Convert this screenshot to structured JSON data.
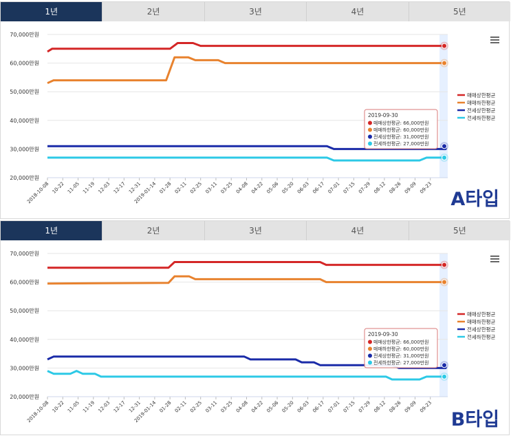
{
  "tabs": [
    "1년",
    "2년",
    "3년",
    "4년",
    "5년"
  ],
  "active_tab_index": 0,
  "series_colors": [
    "#d42626",
    "#e8822e",
    "#1a2ba8",
    "#2cc9e6"
  ],
  "chart_data": [
    {
      "type": "line",
      "label": "A타입",
      "y_ticks": [
        "70,000만원",
        "60,000만원",
        "50,000만원",
        "40,000만원",
        "30,000만원",
        "20,000만원"
      ],
      "ylim": [
        20000,
        70000
      ],
      "x_ticks": [
        "2018-10-08",
        "10-22",
        "11-05",
        "11-19",
        "12-03",
        "12-17",
        "12-31",
        "2019-01-14",
        "01-28",
        "02-11",
        "02-25",
        "03-11",
        "03-25",
        "04-08",
        "04-22",
        "05-06",
        "05-20",
        "06-03",
        "06-17",
        "07-01",
        "07-15",
        "07-29",
        "08-12",
        "08-26",
        "09-09",
        "09-23"
      ],
      "legend_position": "right",
      "series": [
        {
          "name": "매매상한평균",
          "points": [
            [
              0,
              64000
            ],
            [
              0.6,
              65000
            ],
            [
              16,
              65000
            ],
            [
              17,
              67000
            ],
            [
              19,
              67000
            ],
            [
              20,
              66000
            ],
            [
              52,
              66000
            ]
          ]
        },
        {
          "name": "매매하한평균",
          "points": [
            [
              0,
              53000
            ],
            [
              0.8,
              54000
            ],
            [
              15.5,
              54000
            ],
            [
              16.6,
              62000
            ],
            [
              18.4,
              62000
            ],
            [
              19.3,
              61000
            ],
            [
              22.3,
              61000
            ],
            [
              23.2,
              60000
            ],
            [
              52,
              60000
            ]
          ]
        },
        {
          "name": "전세상한평균",
          "points": [
            [
              0,
              31000
            ],
            [
              36.5,
              31000
            ],
            [
              37.4,
              30000
            ],
            [
              52,
              30000
            ],
            [
              52,
              31000
            ]
          ]
        },
        {
          "name": "전세하한평균",
          "points": [
            [
              0,
              27000
            ],
            [
              36.5,
              27000
            ],
            [
              37.4,
              26000
            ],
            [
              48.6,
              26000
            ],
            [
              49.5,
              27000
            ],
            [
              52,
              27000
            ]
          ]
        }
      ],
      "tooltip": {
        "date": "2019-09-30",
        "lines": [
          "매매상한평균: 66,000만원",
          "매매하한평균: 60,000만원",
          "전세상한평균: 31,000만원",
          "전세하한평균: 27,000만원"
        ]
      }
    },
    {
      "type": "line",
      "label": "B타입",
      "y_ticks": [
        "70,000만원",
        "60,000만원",
        "50,000만원",
        "40,000만원",
        "30,000만원",
        "20,000만원"
      ],
      "ylim": [
        20000,
        70000
      ],
      "x_ticks": [
        "2018-10-08",
        "10-22",
        "11-05",
        "11-19",
        "12-03",
        "12-17",
        "12-31",
        "2019-01-14",
        "01-28",
        "02-11",
        "02-25",
        "03-11",
        "03-25",
        "04-08",
        "04-22",
        "05-06",
        "05-20",
        "06-03",
        "06-17",
        "07-01",
        "07-15",
        "07-29",
        "08-12",
        "08-26",
        "09-09",
        "09-23"
      ],
      "legend_position": "right",
      "series": [
        {
          "name": "매매상한평균",
          "points": [
            [
              0,
              65000
            ],
            [
              15.8,
              65000
            ],
            [
              16.6,
              67000
            ],
            [
              35.6,
              67000
            ],
            [
              36.4,
              66000
            ],
            [
              52,
              66000
            ]
          ]
        },
        {
          "name": "매매하한평균",
          "points": [
            [
              0,
              59500
            ],
            [
              15.8,
              59700
            ],
            [
              16.6,
              62000
            ],
            [
              18.5,
              62000
            ],
            [
              19.3,
              61000
            ],
            [
              35.6,
              61000
            ],
            [
              36.4,
              60000
            ],
            [
              52,
              60000
            ]
          ]
        },
        {
          "name": "전세상한평균",
          "points": [
            [
              0,
              33000
            ],
            [
              0.8,
              34000
            ],
            [
              25.7,
              34000
            ],
            [
              26.5,
              33000
            ],
            [
              32.4,
              33000
            ],
            [
              33.2,
              32000
            ],
            [
              34.8,
              32000
            ],
            [
              35.6,
              31000
            ],
            [
              45,
              31000
            ],
            [
              45.9,
              30000
            ],
            [
              52,
              30000
            ],
            [
              52,
              31000
            ]
          ]
        },
        {
          "name": "전세하한평균",
          "points": [
            [
              0,
              29000
            ],
            [
              0.8,
              28000
            ],
            [
              3,
              28000
            ],
            [
              3.8,
              29000
            ],
            [
              4.6,
              28000
            ],
            [
              6.2,
              28000
            ],
            [
              7,
              27000
            ],
            [
              44.2,
              27000
            ],
            [
              45,
              26000
            ],
            [
              48.6,
              26000
            ],
            [
              49.5,
              27000
            ],
            [
              52,
              27000
            ]
          ]
        }
      ],
      "tooltip": {
        "date": "2019-09-30",
        "lines": [
          "매매상한평균: 66,000만원",
          "매매하한평균: 60,000만원",
          "전세상한평균: 31,000만원",
          "전세하한평균: 27,000만원"
        ]
      }
    }
  ]
}
